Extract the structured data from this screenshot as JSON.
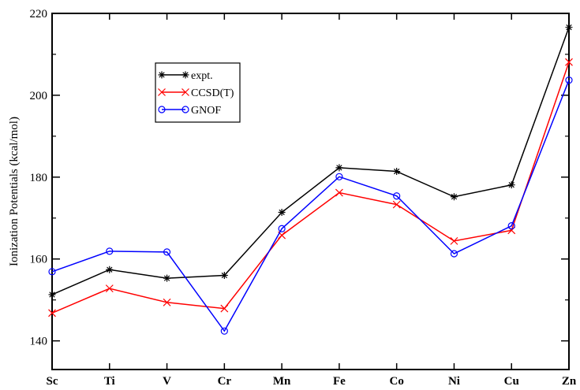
{
  "chart_data": {
    "type": "line",
    "title": "",
    "xlabel": "",
    "ylabel": "Ionization Potentials (kcal/mol)",
    "categories": [
      "Sc",
      "Ti",
      "V",
      "Cr",
      "Mn",
      "Fe",
      "Co",
      "Ni",
      "Cu",
      "Zn"
    ],
    "ylim": [
      133,
      220
    ],
    "yticks": [
      "140",
      "160",
      "180",
      "200",
      "220"
    ],
    "grid": false,
    "legend_position": "upper-left",
    "series": [
      {
        "name": "expt.",
        "color": "#000000",
        "marker": "asterisk",
        "values": [
          151.3,
          157.4,
          155.3,
          156.0,
          171.4,
          182.3,
          181.4,
          175.2,
          178.1,
          216.6
        ]
      },
      {
        "name": "CCSD(T)",
        "color": "#ff0000",
        "marker": "x",
        "values": [
          146.8,
          152.8,
          149.4,
          147.9,
          165.8,
          176.2,
          173.3,
          164.4,
          167.0,
          208.1
        ]
      },
      {
        "name": "GNOF",
        "color": "#0000ff",
        "marker": "circle",
        "values": [
          156.9,
          161.9,
          161.7,
          142.4,
          167.4,
          180.1,
          175.4,
          161.3,
          168.1,
          203.7
        ]
      }
    ]
  }
}
